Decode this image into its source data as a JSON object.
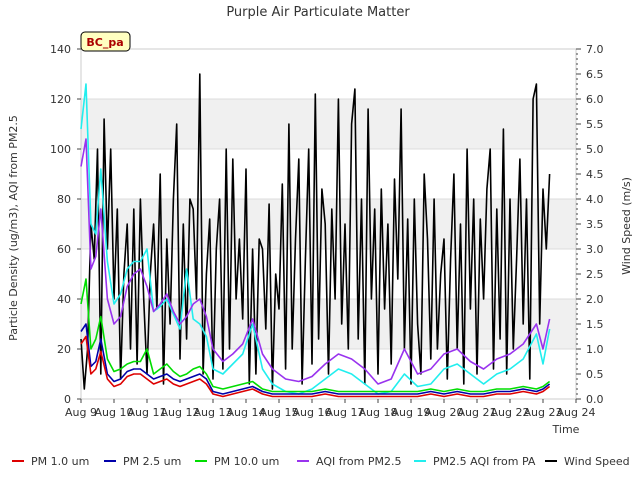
{
  "chart_data": {
    "type": "line",
    "title": "Purple Air Particulate Matter",
    "site_badge": "BC_pa",
    "xlabel": "Time",
    "ylabel": "Particle Density (ug/m3), AQI from PM2.5",
    "y2label": "Wind Speed (m/s)",
    "xlim": [
      9,
      24
    ],
    "ylim": [
      0,
      140
    ],
    "y2lim": [
      0,
      7.0
    ],
    "x_ticks": [
      9,
      10,
      11,
      12,
      13,
      14,
      15,
      16,
      17,
      18,
      19,
      20,
      21,
      22,
      23,
      24
    ],
    "x_tick_labels": [
      "Aug 9",
      "Aug 10",
      "Aug 11",
      "Aug 12",
      "Aug 13",
      "Aug 14",
      "Aug 15",
      "Aug 16",
      "Aug 17",
      "Aug 18",
      "Aug 19",
      "Aug 20",
      "Aug 21",
      "Aug 22",
      "Aug 23",
      "Aug 24"
    ],
    "y_ticks": [
      0,
      20,
      40,
      60,
      80,
      100,
      120,
      140
    ],
    "y_tick_labels": [
      "0",
      "20",
      "40",
      "60",
      "80",
      "100",
      "120",
      "140"
    ],
    "y2_ticks": [
      0,
      0.5,
      1.0,
      1.5,
      2.0,
      2.5,
      3.0,
      3.5,
      4.0,
      4.5,
      5.0,
      5.5,
      6.0,
      6.5,
      7.0
    ],
    "y2_tick_labels": [
      "0.0",
      "0.5",
      "1.0",
      "1.5",
      "2.0",
      "2.5",
      "3.0",
      "3.5",
      "4.0",
      "4.5",
      "5.0",
      "5.5",
      "6.0",
      "6.5",
      "7.0"
    ],
    "background_bands": [
      [
        20,
        40
      ],
      [
        60,
        80
      ],
      [
        100,
        120
      ]
    ],
    "series": [
      {
        "name": "PM 1.0 um",
        "color": "#dd0000",
        "axis": "left",
        "x": [
          9.0,
          9.15,
          9.3,
          9.45,
          9.6,
          9.8,
          10.0,
          10.2,
          10.4,
          10.6,
          10.8,
          11.0,
          11.2,
          11.4,
          11.6,
          11.8,
          12.0,
          12.2,
          12.4,
          12.6,
          12.8,
          13.0,
          13.3,
          13.6,
          13.9,
          14.2,
          14.5,
          14.8,
          15.2,
          15.6,
          16.0,
          16.4,
          16.8,
          17.2,
          17.6,
          18.0,
          18.4,
          18.8,
          19.2,
          19.6,
          20.0,
          20.4,
          20.8,
          21.2,
          21.6,
          22.0,
          22.4,
          22.8,
          23.0,
          23.2
        ],
        "y": [
          22,
          25,
          10,
          12,
          19,
          8,
          5,
          6,
          9,
          10,
          10,
          8,
          6,
          7,
          8,
          6,
          5,
          6,
          7,
          8,
          6,
          2,
          1,
          2,
          3,
          4,
          2,
          1,
          1,
          1,
          1,
          2,
          1,
          1,
          1,
          1,
          1,
          1,
          1,
          2,
          1,
          2,
          1,
          1,
          2,
          2,
          3,
          2,
          3,
          5
        ]
      },
      {
        "name": "PM 2.5 um",
        "color": "#0000aa",
        "axis": "left",
        "x": [
          9.0,
          9.15,
          9.3,
          9.45,
          9.6,
          9.8,
          10.0,
          10.2,
          10.4,
          10.6,
          10.8,
          11.0,
          11.2,
          11.4,
          11.6,
          11.8,
          12.0,
          12.2,
          12.4,
          12.6,
          12.8,
          13.0,
          13.3,
          13.6,
          13.9,
          14.2,
          14.5,
          14.8,
          15.2,
          15.6,
          16.0,
          16.4,
          16.8,
          17.2,
          17.6,
          18.0,
          18.4,
          18.8,
          19.2,
          19.6,
          20.0,
          20.4,
          20.8,
          21.2,
          21.6,
          22.0,
          22.4,
          22.8,
          23.0,
          23.2
        ],
        "y": [
          27,
          30,
          13,
          15,
          24,
          10,
          7,
          8,
          11,
          12,
          12,
          10,
          8,
          9,
          10,
          8,
          7,
          8,
          9,
          10,
          8,
          3,
          2,
          3,
          4,
          5,
          3,
          2,
          2,
          2,
          2,
          3,
          2,
          2,
          2,
          2,
          2,
          2,
          2,
          3,
          2,
          3,
          2,
          2,
          3,
          3,
          4,
          3,
          4,
          6
        ]
      },
      {
        "name": "PM 10.0 um",
        "color": "#00dd00",
        "axis": "left",
        "x": [
          9.0,
          9.15,
          9.3,
          9.45,
          9.6,
          9.8,
          10.0,
          10.2,
          10.4,
          10.6,
          10.8,
          11.0,
          11.2,
          11.4,
          11.6,
          11.8,
          12.0,
          12.2,
          12.4,
          12.6,
          12.8,
          13.0,
          13.3,
          13.6,
          13.9,
          14.2,
          14.5,
          14.8,
          15.2,
          15.6,
          16.0,
          16.4,
          16.8,
          17.2,
          17.6,
          18.0,
          18.4,
          18.8,
          19.2,
          19.6,
          20.0,
          20.4,
          20.8,
          21.2,
          21.6,
          22.0,
          22.4,
          22.8,
          23.0,
          23.2
        ],
        "y": [
          38,
          48,
          20,
          24,
          33,
          16,
          11,
          12,
          14,
          15,
          15,
          20,
          10,
          12,
          14,
          11,
          9,
          10,
          12,
          13,
          10,
          5,
          4,
          5,
          6,
          7,
          4,
          3,
          3,
          3,
          3,
          4,
          3,
          3,
          3,
          3,
          3,
          3,
          3,
          4,
          3,
          4,
          3,
          3,
          4,
          4,
          5,
          4,
          5,
          7
        ]
      },
      {
        "name": "AQI from PM2.5",
        "color": "#9933ee",
        "axis": "left",
        "x": [
          9.0,
          9.15,
          9.3,
          9.45,
          9.6,
          9.8,
          10.0,
          10.2,
          10.4,
          10.6,
          10.8,
          11.0,
          11.2,
          11.4,
          11.6,
          11.8,
          12.0,
          12.2,
          12.4,
          12.6,
          12.8,
          13.0,
          13.3,
          13.6,
          13.9,
          14.2,
          14.5,
          14.8,
          15.2,
          15.6,
          16.0,
          16.4,
          16.8,
          17.2,
          17.6,
          18.0,
          18.4,
          18.8,
          19.2,
          19.6,
          20.0,
          20.4,
          20.8,
          21.2,
          21.6,
          22.0,
          22.4,
          22.8,
          23.0,
          23.2
        ],
        "y": [
          93,
          104,
          52,
          57,
          76,
          40,
          30,
          33,
          45,
          50,
          52,
          45,
          35,
          38,
          42,
          35,
          30,
          33,
          38,
          40,
          33,
          20,
          15,
          18,
          22,
          32,
          18,
          12,
          8,
          7,
          9,
          14,
          18,
          16,
          12,
          6,
          8,
          20,
          10,
          12,
          18,
          20,
          15,
          12,
          16,
          18,
          22,
          30,
          20,
          32
        ]
      },
      {
        "name": "PM2.5 AQI from PA",
        "color": "#22eeee",
        "axis": "left",
        "x": [
          9.0,
          9.15,
          9.3,
          9.45,
          9.6,
          9.8,
          10.0,
          10.2,
          10.4,
          10.6,
          10.8,
          11.0,
          11.2,
          11.4,
          11.6,
          11.8,
          12.0,
          12.2,
          12.4,
          12.6,
          12.8,
          13.0,
          13.3,
          13.6,
          13.9,
          14.2,
          14.5,
          14.8,
          15.2,
          15.6,
          16.0,
          16.4,
          16.8,
          17.2,
          17.6,
          18.0,
          18.4,
          18.8,
          19.2,
          19.6,
          20.0,
          20.4,
          20.8,
          21.2,
          21.6,
          22.0,
          22.4,
          22.8,
          23.0,
          23.2
        ],
        "y": [
          108,
          126,
          70,
          66,
          92,
          55,
          38,
          42,
          52,
          55,
          55,
          60,
          35,
          37,
          40,
          34,
          28,
          52,
          32,
          30,
          25,
          12,
          10,
          14,
          18,
          30,
          12,
          6,
          3,
          2,
          4,
          8,
          12,
          10,
          6,
          2,
          3,
          10,
          5,
          6,
          12,
          14,
          10,
          6,
          10,
          12,
          16,
          26,
          14,
          28
        ]
      },
      {
        "name": "Wind Speed",
        "color": "#000000",
        "axis": "right",
        "x": [
          9.0,
          9.1,
          9.2,
          9.3,
          9.4,
          9.5,
          9.6,
          9.7,
          9.8,
          9.9,
          10.0,
          10.1,
          10.2,
          10.3,
          10.4,
          10.5,
          10.6,
          10.7,
          10.8,
          10.9,
          11.0,
          11.1,
          11.2,
          11.3,
          11.4,
          11.5,
          11.6,
          11.7,
          11.8,
          11.9,
          12.0,
          12.1,
          12.2,
          12.3,
          12.4,
          12.5,
          12.6,
          12.7,
          12.8,
          12.9,
          13.0,
          13.1,
          13.2,
          13.3,
          13.4,
          13.5,
          13.6,
          13.7,
          13.8,
          13.9,
          14.0,
          14.1,
          14.2,
          14.3,
          14.4,
          14.5,
          14.6,
          14.7,
          14.8,
          14.9,
          15.0,
          15.1,
          15.2,
          15.3,
          15.4,
          15.5,
          15.6,
          15.7,
          15.8,
          15.9,
          16.0,
          16.1,
          16.2,
          16.3,
          16.4,
          16.5,
          16.6,
          16.7,
          16.8,
          16.9,
          17.0,
          17.1,
          17.2,
          17.3,
          17.4,
          17.5,
          17.6,
          17.7,
          17.8,
          17.9,
          18.0,
          18.1,
          18.2,
          18.3,
          18.4,
          18.5,
          18.6,
          18.7,
          18.8,
          18.9,
          19.0,
          19.1,
          19.2,
          19.3,
          19.4,
          19.5,
          19.6,
          19.7,
          19.8,
          19.9,
          20.0,
          20.1,
          20.2,
          20.3,
          20.4,
          20.5,
          20.6,
          20.7,
          20.8,
          20.9,
          21.0,
          21.1,
          21.2,
          21.3,
          21.4,
          21.5,
          21.6,
          21.7,
          21.8,
          21.9,
          22.0,
          22.1,
          22.2,
          22.3,
          22.4,
          22.5,
          22.6,
          22.7,
          22.8,
          22.9,
          23.0,
          23.1,
          23.2
        ],
        "y": [
          1.2,
          0.2,
          1.0,
          3.5,
          2.8,
          5.0,
          0.5,
          5.6,
          3.0,
          5.0,
          2.0,
          3.8,
          0.4,
          2.5,
          3.5,
          1.0,
          3.8,
          0.7,
          4.0,
          2.0,
          0.5,
          2.5,
          3.5,
          1.8,
          4.5,
          0.3,
          3.2,
          1.5,
          4.0,
          5.5,
          0.8,
          3.5,
          1.2,
          4.0,
          3.8,
          2.0,
          6.5,
          0.5,
          2.5,
          3.6,
          0.4,
          3.0,
          4.0,
          0.6,
          5.0,
          1.0,
          4.8,
          2.0,
          3.2,
          1.6,
          4.6,
          0.3,
          3.0,
          0.5,
          3.2,
          3.0,
          1.4,
          3.9,
          0.2,
          2.5,
          1.8,
          4.3,
          0.6,
          5.5,
          1.0,
          3.2,
          4.8,
          0.3,
          2.8,
          5.0,
          0.7,
          6.1,
          1.2,
          4.2,
          3.5,
          0.5,
          3.8,
          2.0,
          6.0,
          1.5,
          3.5,
          1.0,
          5.5,
          6.2,
          1.2,
          4.0,
          0.3,
          5.8,
          2.0,
          3.8,
          0.5,
          4.2,
          1.8,
          3.5,
          0.7,
          4.4,
          2.4,
          5.8,
          1.0,
          3.6,
          0.3,
          4.0,
          1.5,
          0.5,
          4.5,
          3.2,
          0.8,
          4.0,
          1.0,
          2.5,
          3.2,
          0.4,
          2.8,
          4.5,
          1.0,
          3.5,
          0.3,
          5.0,
          1.8,
          4.0,
          0.5,
          3.6,
          2.0,
          4.2,
          5.0,
          0.6,
          3.8,
          1.2,
          5.4,
          0.5,
          4.0,
          1.0,
          2.8,
          4.8,
          1.5,
          4.0,
          0.4,
          6.0,
          6.3,
          1.5,
          4.2,
          3.0,
          4.5
        ]
      }
    ]
  }
}
